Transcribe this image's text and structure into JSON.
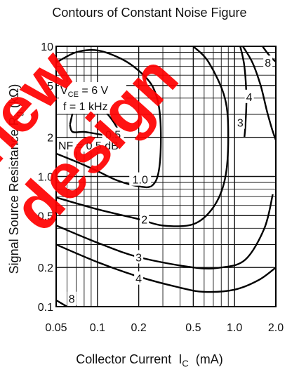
{
  "chart_data": {
    "type": "line",
    "title": "Contours of Constant Noise Figure",
    "xlabel": "Collector Current",
    "xlabel_symbol": "I",
    "xlabel_sub": "C",
    "xlabel_unit": "(mA)",
    "ylabel": "Signal Source Resistance",
    "ylabel_symbol": "R",
    "ylabel_sub": "g",
    "ylabel_unit": "(kΩ)",
    "x_scale": "log",
    "y_scale": "log",
    "xlim": [
      0.05,
      2.0
    ],
    "ylim": [
      0.1,
      10
    ],
    "x_ticks": [
      0.05,
      0.1,
      0.2,
      0.5,
      1.0,
      2.0
    ],
    "x_tick_labels": [
      "0.05",
      "0.1",
      "0.2",
      "0.5",
      "1.0",
      "2.0"
    ],
    "y_ticks": [
      0.1,
      0.2,
      0.5,
      1.0,
      2,
      5,
      10
    ],
    "y_tick_labels": [
      "0.1",
      "0.2",
      "0.5",
      "1.0",
      "2",
      "5",
      "10"
    ],
    "grid": true,
    "conditions": {
      "vce_symbol": "V",
      "vce_sub": "CE",
      "vce_value": "= 6 V",
      "freq": "f = 1 kHz",
      "nf_label": "NF = 0.5 dB"
    },
    "series": [
      {
        "name": "0.5",
        "points": [
          [
            0.063,
            2.5
          ],
          [
            0.07,
            3.7
          ],
          [
            0.085,
            4.1
          ],
          [
            0.11,
            3.3
          ],
          [
            0.135,
            2.5
          ],
          [
            0.14,
            2.2
          ],
          [
            0.13,
            2.0
          ],
          [
            0.105,
            2.1
          ],
          [
            0.08,
            2.2
          ],
          [
            0.066,
            2.2
          ],
          [
            0.063,
            2.5
          ]
        ]
      },
      {
        "name": "1.0",
        "points": [
          [
            0.05,
            7.5
          ],
          [
            0.07,
            9.0
          ],
          [
            0.1,
            9.3
          ],
          [
            0.15,
            8.0
          ],
          [
            0.2,
            6.5
          ],
          [
            0.25,
            5.0
          ],
          [
            0.28,
            3.5
          ],
          [
            0.29,
            2.0
          ],
          [
            0.28,
            1.1
          ],
          [
            0.25,
            0.85
          ],
          [
            0.2,
            0.84
          ],
          [
            0.14,
            0.93
          ],
          [
            0.1,
            1.1
          ],
          [
            0.07,
            1.3
          ],
          [
            0.05,
            1.5
          ]
        ]
      },
      {
        "name": "2",
        "points": [
          [
            0.05,
            0.69
          ],
          [
            0.1,
            0.56
          ],
          [
            0.2,
            0.47
          ],
          [
            0.3,
            0.42
          ],
          [
            0.5,
            0.43
          ],
          [
            0.7,
            0.58
          ],
          [
            0.85,
            0.95
          ],
          [
            0.9,
            2.0
          ],
          [
            0.85,
            4.0
          ],
          [
            0.65,
            7.5
          ],
          [
            0.5,
            10
          ]
        ]
      },
      {
        "name": "3",
        "points": [
          [
            0.05,
            0.42
          ],
          [
            0.1,
            0.31
          ],
          [
            0.2,
            0.24
          ],
          [
            0.5,
            0.2
          ],
          [
            0.8,
            0.2
          ],
          [
            1.2,
            0.23
          ],
          [
            1.65,
            0.4
          ],
          [
            1.9,
            0.73
          ]
        ]
      },
      {
        "name": "3",
        "points": [
          [
            1.1,
            10
          ],
          [
            1.18,
            7.0
          ],
          [
            1.22,
            4.0
          ],
          [
            1.2,
            2.5
          ],
          [
            1.18,
            2.0
          ]
        ]
      },
      {
        "name": "4",
        "points": [
          [
            0.05,
            0.3
          ],
          [
            0.1,
            0.22
          ],
          [
            0.2,
            0.17
          ],
          [
            0.4,
            0.14
          ],
          [
            0.6,
            0.13
          ],
          [
            1.0,
            0.135
          ],
          [
            1.5,
            0.16
          ],
          [
            2.0,
            0.2
          ]
        ]
      },
      {
        "name": "4",
        "points": [
          [
            1.15,
            10
          ],
          [
            1.35,
            7.5
          ],
          [
            1.55,
            5.0
          ],
          [
            1.72,
            3.2
          ],
          [
            1.88,
            2.3
          ],
          [
            2.0,
            1.9
          ]
        ]
      },
      {
        "name": "8",
        "points": [
          [
            1.6,
            10
          ],
          [
            1.72,
            9.0
          ],
          [
            1.85,
            8.2
          ],
          [
            2.0,
            7.6
          ]
        ]
      },
      {
        "name": "8",
        "points": [
          [
            0.05,
            0.112
          ],
          [
            0.06,
            0.1
          ]
        ]
      }
    ],
    "curve_labels": [
      {
        "text": "0.5",
        "x": 0.13,
        "y": 2.1
      },
      {
        "text": "1.0",
        "x": 0.205,
        "y": 0.95
      },
      {
        "text": "2",
        "x": 0.22,
        "y": 0.47
      },
      {
        "text": "3",
        "x": 0.2,
        "y": 0.24
      },
      {
        "text": "3",
        "x": 1.1,
        "y": 2.6
      },
      {
        "text": "4",
        "x": 0.2,
        "y": 0.165
      },
      {
        "text": "4",
        "x": 1.28,
        "y": 4.1
      },
      {
        "text": "8",
        "x": 1.75,
        "y": 7.5
      },
      {
        "text": "8",
        "x": 0.065,
        "y": 0.115
      }
    ],
    "watermark": "new design"
  }
}
